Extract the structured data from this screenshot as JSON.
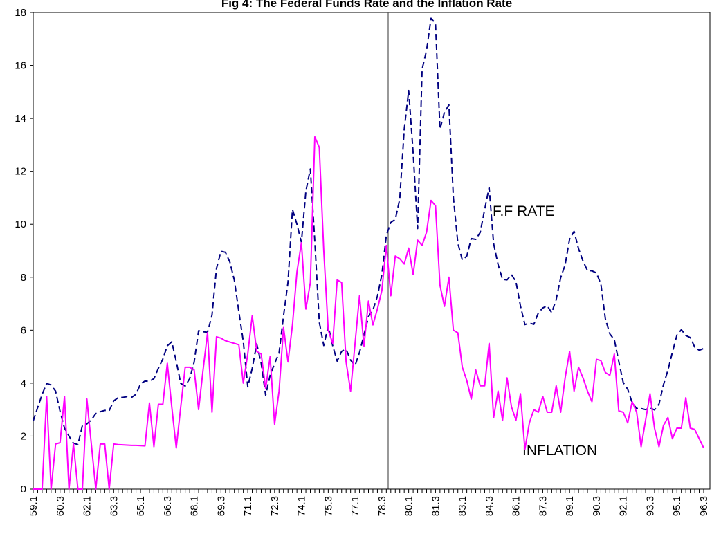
{
  "chart_data": {
    "type": "line",
    "title": "Fig 4: The Federal Funds Rate and the Inflation Rate",
    "categories": [
      "59.1",
      null,
      null,
      null,
      null,
      null,
      "60.3",
      null,
      null,
      null,
      null,
      null,
      "62.1",
      null,
      null,
      null,
      null,
      null,
      "63.3",
      null,
      null,
      null,
      null,
      null,
      "65.1",
      null,
      null,
      null,
      null,
      null,
      "66.3",
      null,
      null,
      null,
      null,
      null,
      "68.1",
      null,
      null,
      null,
      null,
      null,
      "69.3",
      null,
      null,
      null,
      null,
      null,
      "71.1",
      null,
      null,
      null,
      null,
      null,
      "72.3",
      null,
      null,
      null,
      null,
      null,
      "74.1",
      null,
      null,
      null,
      null,
      null,
      "75.3",
      null,
      null,
      null,
      null,
      null,
      "77.1",
      null,
      null,
      null,
      null,
      null,
      "78.3",
      null,
      null,
      null,
      null,
      null,
      "80.1",
      null,
      null,
      null,
      null,
      null,
      "81.3",
      null,
      null,
      null,
      null,
      null,
      "83.1",
      null,
      null,
      null,
      null,
      null,
      "84.3",
      null,
      null,
      null,
      null,
      null,
      "86.1",
      null,
      null,
      null,
      null,
      null,
      "87.3",
      null,
      null,
      null,
      null,
      null,
      "89.1",
      null,
      null,
      null,
      null,
      null,
      "90.3",
      null,
      null,
      null,
      null,
      null,
      "92.1",
      null,
      null,
      null,
      null,
      null,
      "93.3",
      null,
      null,
      null,
      null,
      null,
      "95.1",
      null,
      null,
      null,
      null,
      null,
      "96.3"
    ],
    "series": [
      {
        "name": "F.F RATE",
        "color": "#000080",
        "dashed": true,
        "values": [
          2.57,
          3.08,
          3.58,
          3.99,
          3.93,
          3.7,
          2.94,
          2.3,
          2.0,
          1.73,
          1.68,
          2.4,
          2.46,
          2.61,
          2.85,
          2.92,
          2.97,
          2.96,
          3.33,
          3.45,
          3.46,
          3.49,
          3.46,
          3.58,
          3.97,
          4.08,
          4.07,
          4.17,
          4.56,
          4.91,
          5.41,
          5.56,
          4.82,
          3.99,
          3.89,
          4.17,
          4.79,
          5.98,
          5.94,
          5.92,
          6.57,
          8.33,
          8.98,
          8.94,
          8.57,
          7.88,
          6.7,
          5.57,
          3.86,
          4.56,
          5.48,
          4.75,
          3.54,
          4.3,
          4.74,
          5.14,
          6.54,
          7.82,
          10.56,
          10.0,
          9.32,
          11.25,
          12.09,
          9.35,
          6.3,
          5.42,
          6.16,
          5.41,
          4.83,
          5.2,
          5.28,
          4.87,
          4.66,
          5.16,
          5.82,
          6.51,
          6.76,
          7.28,
          8.1,
          9.58,
          10.07,
          10.18,
          10.95,
          13.58,
          15.05,
          12.69,
          9.84,
          15.85,
          16.57,
          17.78,
          17.58,
          13.59,
          14.23,
          14.51,
          11.01,
          9.29,
          8.65,
          8.8,
          9.46,
          9.43,
          9.69,
          10.56,
          11.39,
          9.27,
          8.48,
          7.92,
          7.9,
          8.1,
          7.83,
          6.92,
          6.21,
          6.27,
          6.22,
          6.65,
          6.84,
          6.92,
          6.66,
          7.16,
          7.98,
          8.47,
          9.44,
          9.73,
          9.08,
          8.61,
          8.25,
          8.24,
          8.16,
          7.74,
          6.43,
          5.86,
          5.64,
          4.82,
          4.02,
          3.77,
          3.26,
          3.04,
          3.04,
          3.0,
          3.06,
          2.99,
          3.21,
          3.94,
          4.49,
          5.17,
          5.81,
          6.02,
          5.8,
          5.72,
          5.36,
          5.24,
          5.31
        ]
      },
      {
        "name": "INFLATION",
        "color": "#ff00ff",
        "dashed": false,
        "values": [
          0,
          0,
          0,
          3.5,
          0,
          1.7,
          1.75,
          3.5,
          0,
          1.7,
          0,
          0,
          3.4,
          1.7,
          0,
          1.7,
          1.7,
          0,
          1.7,
          1.68,
          1.67,
          1.66,
          1.65,
          1.65,
          1.64,
          1.63,
          3.25,
          1.6,
          3.2,
          3.2,
          4.75,
          3.1,
          1.55,
          3.1,
          4.6,
          4.6,
          4.5,
          3.0,
          4.5,
          5.9,
          2.9,
          5.75,
          5.7,
          5.6,
          5.55,
          5.5,
          5.45,
          4.0,
          5.1,
          6.55,
          5.2,
          5.1,
          3.8,
          5.0,
          2.45,
          3.7,
          6.1,
          4.8,
          6.2,
          8.2,
          9.3,
          6.8,
          7.8,
          13.3,
          12.9,
          9.0,
          6.0,
          5.5,
          7.9,
          7.8,
          4.8,
          3.7,
          5.5,
          7.3,
          5.4,
          7.1,
          6.2,
          6.8,
          7.5,
          9.2,
          7.3,
          8.8,
          8.7,
          8.5,
          9.1,
          8.1,
          9.4,
          9.2,
          9.7,
          10.9,
          10.7,
          7.7,
          6.9,
          8.0,
          6.0,
          5.9,
          4.6,
          4.1,
          3.4,
          4.5,
          3.9,
          3.9,
          5.5,
          2.7,
          3.7,
          2.6,
          4.2,
          3.1,
          2.6,
          3.6,
          1.5,
          2.5,
          3.0,
          2.9,
          3.5,
          2.9,
          2.9,
          3.9,
          2.9,
          4.2,
          5.2,
          3.7,
          4.6,
          4.2,
          3.7,
          3.3,
          4.9,
          4.85,
          4.4,
          4.3,
          5.1,
          2.95,
          2.9,
          2.5,
          3.3,
          2.9,
          1.6,
          2.6,
          3.6,
          2.3,
          1.6,
          2.4,
          2.7,
          1.9,
          2.3,
          2.3,
          3.45,
          2.3,
          2.25,
          1.9,
          1.55
        ]
      }
    ],
    "ylim": [
      0,
      18
    ],
    "yticks": [
      0,
      2,
      4,
      6,
      8,
      10,
      12,
      14,
      16,
      18
    ],
    "grid": false
  }
}
